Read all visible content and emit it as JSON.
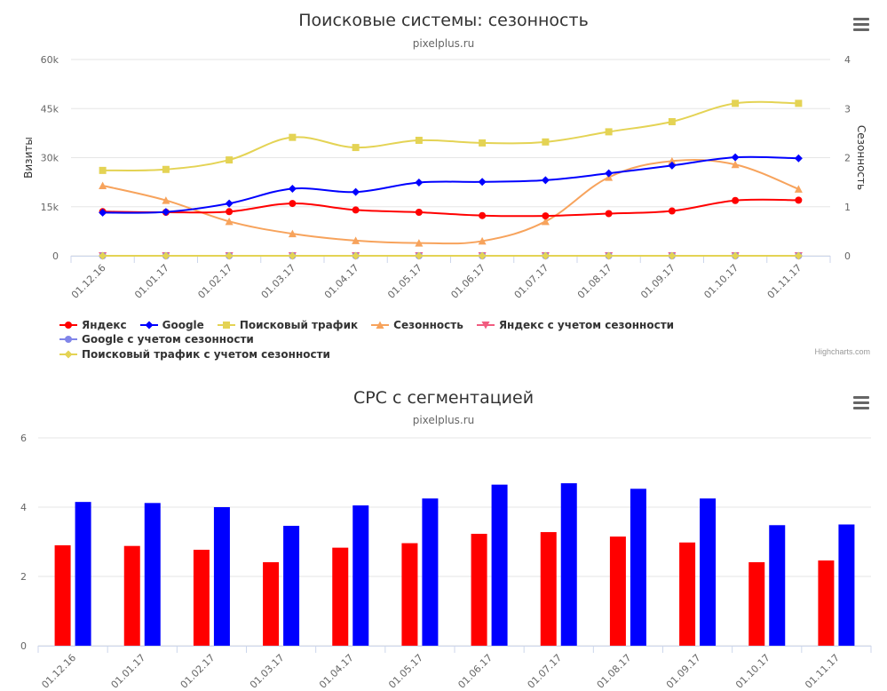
{
  "credits": "Highcharts.com",
  "menu_icon": "hamburger-menu-icon",
  "chart_data": [
    {
      "type": "line",
      "title": "Поисковые системы: сезонность",
      "subtitle": "pixelplus.ru",
      "categories": [
        "01.12.16",
        "01.01.17",
        "01.02.17",
        "01.03.17",
        "01.04.17",
        "01.05.17",
        "01.06.17",
        "01.07.17",
        "01.08.17",
        "01.09.17",
        "01.10.17",
        "01.11.17"
      ],
      "y_axis_left": {
        "label": "Визиты",
        "range": [
          0,
          60000
        ],
        "ticks": [
          "0",
          "15k",
          "30k",
          "45k",
          "60k"
        ]
      },
      "y_axis_right": {
        "label": "Сезонность",
        "range": [
          0,
          4
        ],
        "ticks": [
          "0",
          "1",
          "2",
          "3",
          "4"
        ]
      },
      "grid": true,
      "legend_position": "bottom",
      "series": [
        {
          "name": "Яндекс",
          "axis": "left",
          "color": "#ff0000",
          "marker": "circle",
          "values": [
            13500,
            13300,
            13500,
            16000,
            14000,
            13300,
            12300,
            12200,
            12900,
            13700,
            16900,
            17000
          ]
        },
        {
          "name": "Google",
          "axis": "left",
          "color": "#0000ff",
          "marker": "diamond",
          "values": [
            13200,
            13400,
            16000,
            20500,
            19500,
            22400,
            22600,
            23100,
            25200,
            27600,
            30100,
            29800
          ]
        },
        {
          "name": "Поисковый трафик",
          "axis": "left",
          "color": "#e4d354",
          "marker": "square",
          "values": [
            26100,
            26400,
            29300,
            36200,
            33100,
            35300,
            34500,
            34800,
            37900,
            41000,
            46600,
            46600
          ]
        },
        {
          "name": "Сезонность",
          "axis": "right",
          "color": "#f7a35c",
          "marker": "triangle",
          "values": [
            1.43,
            1.13,
            0.7,
            0.45,
            0.31,
            0.26,
            0.3,
            0.7,
            1.6,
            1.93,
            1.86,
            1.36
          ]
        },
        {
          "name": "Яндекс с учетом сезонности",
          "axis": "left",
          "color": "#f15c80",
          "marker": "triangle-down",
          "values": [
            0,
            0,
            0,
            0,
            0,
            0,
            0,
            0,
            0,
            0,
            0,
            0
          ]
        },
        {
          "name": "Google с учетом сезонности",
          "axis": "left",
          "color": "#8085e9",
          "marker": "circle",
          "values": [
            0,
            0,
            0,
            0,
            0,
            0,
            0,
            0,
            0,
            0,
            0,
            0
          ]
        },
        {
          "name": "Поисковый трафик с учетом сезонности",
          "axis": "left",
          "color": "#e4d354",
          "marker": "diamond",
          "values": [
            0,
            0,
            0,
            0,
            0,
            0,
            0,
            0,
            0,
            0,
            0,
            0
          ]
        }
      ]
    },
    {
      "type": "bar",
      "title": "CPC с сегментацией",
      "subtitle": "pixelplus.ru",
      "categories": [
        "01.12.16",
        "01.01.17",
        "01.02.17",
        "01.03.17",
        "01.04.17",
        "01.05.17",
        "01.06.17",
        "01.07.17",
        "01.08.17",
        "01.09.17",
        "01.10.17",
        "01.11.17"
      ],
      "y_axis": {
        "range": [
          0,
          6
        ],
        "ticks": [
          "0",
          "2",
          "4",
          "6"
        ]
      },
      "grid": true,
      "series": [
        {
          "color": "#ff0000",
          "values": [
            2.9,
            2.88,
            2.77,
            2.41,
            2.83,
            2.96,
            3.23,
            3.28,
            3.15,
            2.98,
            2.41,
            2.46
          ]
        },
        {
          "color": "#0000ff",
          "values": [
            4.15,
            4.12,
            4.0,
            3.46,
            4.05,
            4.25,
            4.65,
            4.69,
            4.53,
            4.25,
            3.48,
            3.5
          ]
        }
      ]
    }
  ]
}
